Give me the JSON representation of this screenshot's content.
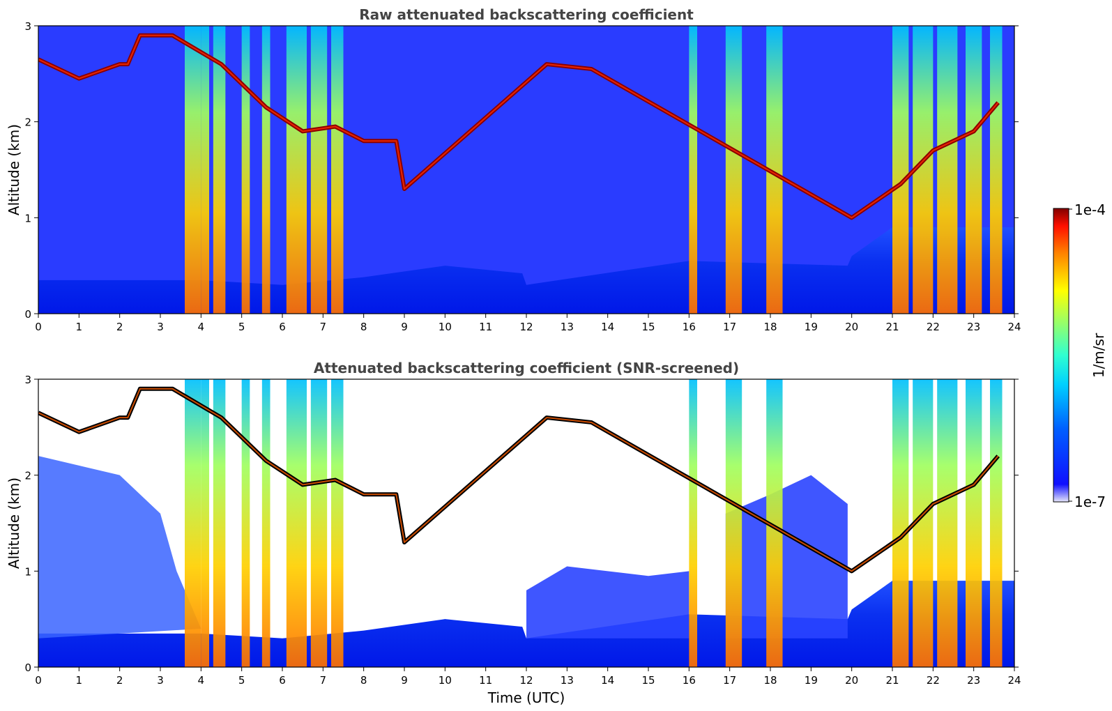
{
  "chart_data": [
    {
      "type": "heatmap",
      "title": "Raw attenuated backscattering coefficient",
      "xlabel": "",
      "ylabel": "Altitude (km)",
      "xlim": [
        0,
        24
      ],
      "ylim": [
        0,
        3
      ],
      "xticks": [
        "0",
        "1",
        "2",
        "3",
        "4",
        "5",
        "6",
        "7",
        "8",
        "9",
        "10",
        "11",
        "12",
        "13",
        "14",
        "15",
        "16",
        "17",
        "18",
        "19",
        "20",
        "21",
        "22",
        "23",
        "24"
      ],
      "yticks": [
        "0",
        "1",
        "2",
        "3"
      ],
      "colormap": "jet",
      "scale": "log",
      "screened": false,
      "features": {
        "boundary_layer_top_km": [
          [
            0,
            0.35
          ],
          [
            4,
            0.35
          ],
          [
            6,
            0.3
          ],
          [
            8,
            0.38
          ],
          [
            10,
            0.5
          ],
          [
            11.9,
            0.42
          ],
          [
            12,
            0.3
          ],
          [
            16,
            0.55
          ],
          [
            19.9,
            0.5
          ],
          [
            20,
            0.6
          ],
          [
            21,
            0.9
          ]
        ],
        "cloud_layer_top_km": [
          [
            0,
            2.65
          ],
          [
            1,
            2.45
          ],
          [
            2,
            2.6
          ],
          [
            2.2,
            2.6
          ],
          [
            2.5,
            2.9
          ],
          [
            3.3,
            2.9
          ],
          [
            4.5,
            2.6
          ],
          [
            5.6,
            2.15
          ],
          [
            6.5,
            1.9
          ],
          [
            7.3,
            1.95
          ],
          [
            8,
            1.8
          ],
          [
            8.8,
            1.8
          ],
          [
            9,
            1.3
          ],
          [
            12.5,
            2.6
          ],
          [
            13.6,
            2.55
          ],
          [
            20,
            1.0
          ],
          [
            21.2,
            1.35
          ],
          [
            22,
            1.7
          ],
          [
            23,
            1.9
          ],
          [
            23.6,
            2.2
          ]
        ],
        "precipitation_shafts_utc": [
          [
            3.6,
            4.0
          ],
          [
            4.0,
            4.2
          ],
          [
            4.3,
            4.6
          ],
          [
            5.0,
            5.2
          ],
          [
            5.5,
            5.7
          ],
          [
            6.1,
            6.6
          ],
          [
            6.7,
            7.1
          ],
          [
            7.2,
            7.5
          ],
          [
            16.0,
            16.2
          ],
          [
            16.9,
            17.3
          ],
          [
            17.9,
            18.3
          ],
          [
            21.0,
            21.4
          ],
          [
            21.5,
            22.0
          ],
          [
            22.1,
            22.6
          ],
          [
            22.8,
            23.2
          ],
          [
            23.4,
            23.7
          ]
        ]
      }
    },
    {
      "type": "heatmap",
      "title": "Attenuated backscattering coefficient (SNR-screened)",
      "xlabel": "Time (UTC)",
      "ylabel": "Altitude (km)",
      "xlim": [
        0,
        24
      ],
      "ylim": [
        0,
        3
      ],
      "xticks": [
        "0",
        "1",
        "2",
        "3",
        "4",
        "5",
        "6",
        "7",
        "8",
        "9",
        "10",
        "11",
        "12",
        "13",
        "14",
        "15",
        "16",
        "17",
        "18",
        "19",
        "20",
        "21",
        "22",
        "23",
        "24"
      ],
      "yticks": [
        "0",
        "1",
        "2",
        "3"
      ],
      "colormap": "jet",
      "scale": "log",
      "screened": true,
      "features": {
        "boundary_layer_top_km": [
          [
            0,
            0.35
          ],
          [
            4,
            0.35
          ],
          [
            6,
            0.3
          ],
          [
            8,
            0.38
          ],
          [
            10,
            0.5
          ],
          [
            11.9,
            0.42
          ],
          [
            12,
            0.3
          ],
          [
            16,
            0.55
          ],
          [
            19.9,
            0.5
          ],
          [
            20,
            0.6
          ],
          [
            21,
            0.9
          ]
        ],
        "cloud_layer_top_km": [
          [
            0,
            2.65
          ],
          [
            1,
            2.45
          ],
          [
            2,
            2.6
          ],
          [
            2.2,
            2.6
          ],
          [
            2.5,
            2.9
          ],
          [
            3.3,
            2.9
          ],
          [
            4.5,
            2.6
          ],
          [
            5.6,
            2.15
          ],
          [
            6.5,
            1.9
          ],
          [
            7.3,
            1.95
          ],
          [
            8,
            1.8
          ],
          [
            8.8,
            1.8
          ],
          [
            9,
            1.3
          ],
          [
            12.5,
            2.6
          ],
          [
            13.6,
            2.55
          ],
          [
            20,
            1.0
          ],
          [
            21.2,
            1.35
          ],
          [
            22,
            1.7
          ],
          [
            23,
            1.9
          ],
          [
            23.6,
            2.2
          ]
        ],
        "precipitation_shafts_utc": [
          [
            3.6,
            4.0
          ],
          [
            4.0,
            4.2
          ],
          [
            4.3,
            4.6
          ],
          [
            5.0,
            5.2
          ],
          [
            5.5,
            5.7
          ],
          [
            6.1,
            6.6
          ],
          [
            6.7,
            7.1
          ],
          [
            7.2,
            7.5
          ],
          [
            16.0,
            16.2
          ],
          [
            16.9,
            17.3
          ],
          [
            17.9,
            18.3
          ],
          [
            21.0,
            21.4
          ],
          [
            21.5,
            22.0
          ],
          [
            22.1,
            22.6
          ],
          [
            22.8,
            23.2
          ],
          [
            23.4,
            23.7
          ]
        ]
      }
    }
  ],
  "colorbar": {
    "min_label": "1e-7",
    "max_label": "1e-4",
    "unit_label": "1/m/sr",
    "colors": [
      "#e6e6fa",
      "#0000ff",
      "#00a0ff",
      "#00ffff",
      "#7fff7f",
      "#ffff00",
      "#ff7f00",
      "#ff0000",
      "#800000"
    ]
  }
}
